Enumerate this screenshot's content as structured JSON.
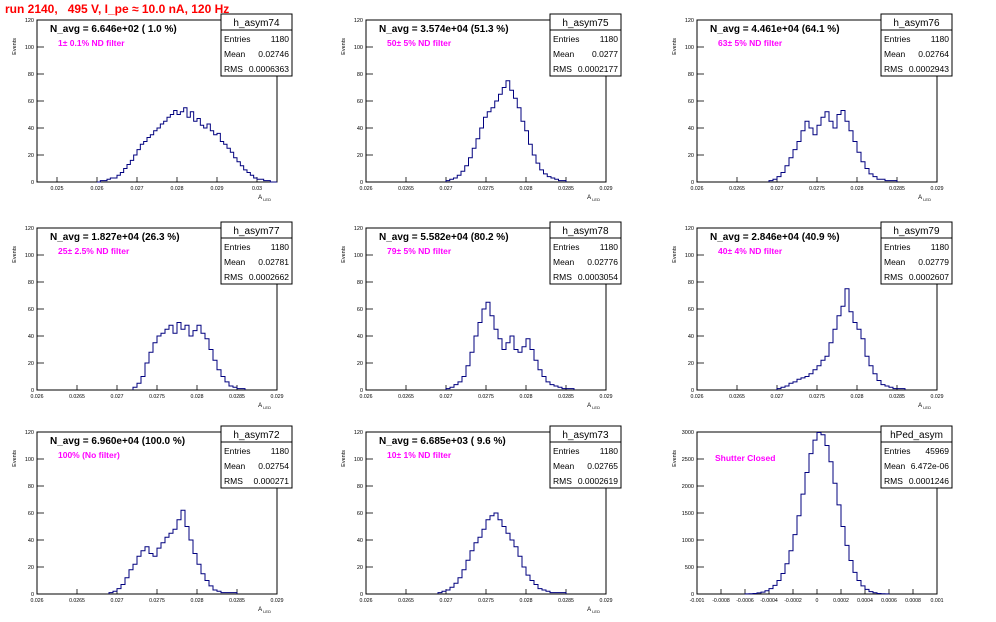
{
  "run_title": "run 2140,   495 V, I_pe ≈ 10.0 nA, 120 Hz",
  "colors": {
    "title": "#ff0000",
    "hist_line": "#00007f",
    "annotation": "#ff00ff",
    "frame": "#000000"
  },
  "chart_data": [
    {
      "type": "histogram",
      "name": "h_asym74",
      "ylabel": "Events",
      "xlabel": "A_LED",
      "n_avg": "N_avg = 6.646e+02 ( 1.0 %)",
      "annotation": "1± 0.1% ND filter",
      "stats": {
        "Entries": "1180",
        "Mean": "0.02746",
        "RMS": "0.0006363"
      },
      "xlim": [
        0.0245,
        0.0305
      ],
      "ylim": [
        0,
        120
      ],
      "xticks": [
        "0.025",
        "0.026",
        "0.027",
        "0.028",
        "0.029",
        "0.03"
      ],
      "yticks": [
        "0",
        "20",
        "40",
        "60",
        "80",
        "100",
        "120"
      ],
      "bin_edges": [
        0.026,
        0.0305
      ],
      "values": [
        0,
        1,
        1,
        2,
        3,
        3,
        5,
        7,
        10,
        13,
        16,
        20,
        24,
        28,
        30,
        33,
        35,
        38,
        40,
        43,
        45,
        48,
        50,
        53,
        50,
        52,
        55,
        48,
        52,
        45,
        47,
        42,
        40,
        43,
        38,
        35,
        36,
        30,
        28,
        25,
        22,
        18,
        15,
        12,
        9,
        7,
        5,
        3,
        2,
        2,
        1,
        1,
        0,
        0
      ]
    },
    {
      "type": "histogram",
      "name": "h_asym75",
      "ylabel": "Events",
      "xlabel": "A_LED",
      "n_avg": "N_avg = 3.574e+04 (51.3 %)",
      "annotation": "50± 5% ND filter",
      "stats": {
        "Entries": "1180",
        "Mean": "0.0277",
        "RMS": "0.0002177"
      },
      "xlim": [
        0.026,
        0.029
      ],
      "ylim": [
        0,
        120
      ],
      "xticks": [
        "0.026",
        "0.0265",
        "0.027",
        "0.0275",
        "0.028",
        "0.0285",
        "0.029"
      ],
      "yticks": [
        "0",
        "20",
        "40",
        "60",
        "80",
        "100",
        "120"
      ],
      "bin_edges": [
        0.027,
        0.0285
      ],
      "values": [
        1,
        2,
        3,
        5,
        8,
        12,
        18,
        25,
        32,
        40,
        48,
        52,
        55,
        60,
        65,
        70,
        75,
        68,
        62,
        55,
        45,
        38,
        28,
        20,
        14,
        9,
        6,
        4,
        3,
        2,
        1,
        1
      ]
    },
    {
      "type": "histogram",
      "name": "h_asym76",
      "ylabel": "Events",
      "xlabel": "A_LED",
      "n_avg": "N_avg = 4.461e+04 (64.1 %)",
      "annotation": "63± 5% ND filter",
      "stats": {
        "Entries": "1180",
        "Mean": "0.02764",
        "RMS": "0.0002943"
      },
      "xlim": [
        0.026,
        0.029
      ],
      "ylim": [
        0,
        120
      ],
      "xticks": [
        "0.026",
        "0.0265",
        "0.027",
        "0.0275",
        "0.028",
        "0.0285",
        "0.029"
      ],
      "yticks": [
        "0",
        "20",
        "40",
        "60",
        "80",
        "100",
        "120"
      ],
      "bin_edges": [
        0.0269,
        0.0285
      ],
      "values": [
        1,
        2,
        4,
        7,
        12,
        18,
        24,
        30,
        38,
        45,
        40,
        35,
        42,
        48,
        52,
        45,
        40,
        50,
        53,
        45,
        38,
        30,
        22,
        15,
        10,
        6,
        4,
        2,
        2,
        1,
        1,
        1
      ]
    },
    {
      "type": "histogram",
      "name": "h_asym77",
      "ylabel": "Events",
      "xlabel": "A_LED",
      "n_avg": "N_avg = 1.827e+04 (26.3 %)",
      "annotation": "25± 2.5% ND filter",
      "stats": {
        "Entries": "1180",
        "Mean": "0.02781",
        "RMS": "0.0002662"
      },
      "xlim": [
        0.026,
        0.029
      ],
      "ylim": [
        0,
        120
      ],
      "xticks": [
        "0.026",
        "0.0265",
        "0.027",
        "0.0275",
        "0.028",
        "0.0285",
        "0.029"
      ],
      "yticks": [
        "0",
        "20",
        "40",
        "60",
        "80",
        "100",
        "120"
      ],
      "bin_edges": [
        0.0272,
        0.0286
      ],
      "values": [
        2,
        5,
        10,
        20,
        28,
        35,
        40,
        42,
        45,
        48,
        42,
        50,
        45,
        48,
        40,
        44,
        48,
        42,
        38,
        30,
        22,
        15,
        10,
        6,
        3,
        2,
        1,
        1
      ]
    },
    {
      "type": "histogram",
      "name": "h_asym78",
      "ylabel": "Events",
      "xlabel": "A_LED",
      "n_avg": "N_avg = 5.582e+04 (80.2 %)",
      "annotation": "79± 5% ND filter",
      "stats": {
        "Entries": "1180",
        "Mean": "0.02776",
        "RMS": "0.0003054"
      },
      "xlim": [
        0.026,
        0.029
      ],
      "ylim": [
        0,
        120
      ],
      "xticks": [
        "0.026",
        "0.0265",
        "0.027",
        "0.0275",
        "0.028",
        "0.0285",
        "0.029"
      ],
      "yticks": [
        "0",
        "20",
        "40",
        "60",
        "80",
        "100",
        "120"
      ],
      "bin_edges": [
        0.027,
        0.0286
      ],
      "values": [
        1,
        2,
        4,
        6,
        10,
        18,
        28,
        40,
        50,
        60,
        65,
        55,
        45,
        38,
        30,
        35,
        40,
        30,
        28,
        32,
        38,
        30,
        22,
        15,
        10,
        6,
        4,
        3,
        2,
        1,
        1,
        1
      ]
    },
    {
      "type": "histogram",
      "name": "h_asym79",
      "ylabel": "Events",
      "xlabel": "A_LED",
      "n_avg": "N_avg = 2.846e+04 (40.9 %)",
      "annotation": "40± 4% ND filter",
      "stats": {
        "Entries": "1180",
        "Mean": "0.02779",
        "RMS": "0.0002607"
      },
      "xlim": [
        0.026,
        0.029
      ],
      "ylim": [
        0,
        120
      ],
      "xticks": [
        "0.026",
        "0.0265",
        "0.027",
        "0.0275",
        "0.028",
        "0.0285",
        "0.029"
      ],
      "yticks": [
        "0",
        "20",
        "40",
        "60",
        "80",
        "100",
        "120"
      ],
      "bin_edges": [
        0.027,
        0.0286
      ],
      "values": [
        1,
        2,
        3,
        5,
        6,
        8,
        9,
        10,
        12,
        15,
        18,
        22,
        25,
        35,
        45,
        55,
        62,
        75,
        58,
        50,
        45,
        38,
        25,
        18,
        12,
        7,
        4,
        3,
        2,
        1,
        1,
        1
      ]
    },
    {
      "type": "histogram",
      "name": "h_asym72",
      "ylabel": "Events",
      "xlabel": "A_LED",
      "n_avg": "N_avg = 6.960e+04 (100.0 %)",
      "annotation": "100% (No filter)",
      "stats": {
        "Entries": "1180",
        "Mean": "0.02754",
        "RMS": "0.000271"
      },
      "xlim": [
        0.026,
        0.029
      ],
      "ylim": [
        0,
        120
      ],
      "xticks": [
        "0.026",
        "0.0265",
        "0.027",
        "0.0275",
        "0.028",
        "0.0285",
        "0.029"
      ],
      "yticks": [
        "0",
        "20",
        "40",
        "60",
        "80",
        "100",
        "120"
      ],
      "bin_edges": [
        0.0269,
        0.0285
      ],
      "values": [
        1,
        2,
        4,
        7,
        12,
        18,
        22,
        28,
        32,
        35,
        30,
        28,
        34,
        38,
        42,
        45,
        48,
        55,
        62,
        50,
        40,
        30,
        22,
        15,
        10,
        6,
        3,
        2,
        1,
        1,
        1,
        1
      ]
    },
    {
      "type": "histogram",
      "name": "h_asym73",
      "ylabel": "Events",
      "xlabel": "A_LED",
      "n_avg": "N_avg = 6.685e+03 ( 9.6 %)",
      "annotation": "10± 1% ND filter",
      "stats": {
        "Entries": "1180",
        "Mean": "0.02765",
        "RMS": "0.0002619"
      },
      "xlim": [
        0.026,
        0.029
      ],
      "ylim": [
        0,
        120
      ],
      "xticks": [
        "0.026",
        "0.0265",
        "0.027",
        "0.0275",
        "0.028",
        "0.0285",
        "0.029"
      ],
      "yticks": [
        "0",
        "20",
        "40",
        "60",
        "80",
        "100",
        "120"
      ],
      "bin_edges": [
        0.0269,
        0.0285
      ],
      "values": [
        1,
        2,
        3,
        5,
        8,
        12,
        18,
        25,
        32,
        38,
        42,
        48,
        55,
        58,
        60,
        55,
        50,
        45,
        40,
        35,
        28,
        20,
        14,
        10,
        7,
        4,
        3,
        2,
        1,
        1,
        1,
        1
      ]
    },
    {
      "type": "histogram",
      "name": "hPed_asym",
      "ylabel": "Events",
      "xlabel": "",
      "n_avg": "",
      "annotation": "Shutter Closed",
      "stats": {
        "Entries": "45969",
        "Mean": "6.472e-06",
        "RMS": "0.0001246"
      },
      "xlim": [
        -0.001,
        0.001
      ],
      "ylim": [
        0,
        3000
      ],
      "xticks": [
        "-0.001",
        "-0.0008",
        "-0.0006",
        "-0.0004",
        "-0.0002",
        "0",
        "0.0002",
        "0.0004",
        "0.0006",
        "0.0008",
        "0.001"
      ],
      "yticks": [
        "0",
        "500",
        "1000",
        "1500",
        "2000",
        "2500",
        "3000"
      ],
      "bin_edges": [
        -0.0006,
        0.0006
      ],
      "values": [
        2,
        5,
        10,
        20,
        35,
        60,
        100,
        160,
        250,
        380,
        560,
        800,
        1100,
        1450,
        1850,
        2250,
        2600,
        2850,
        2990,
        2950,
        2750,
        2450,
        2050,
        1650,
        1250,
        900,
        620,
        400,
        250,
        150,
        85,
        45,
        22,
        10,
        5,
        2
      ]
    }
  ]
}
